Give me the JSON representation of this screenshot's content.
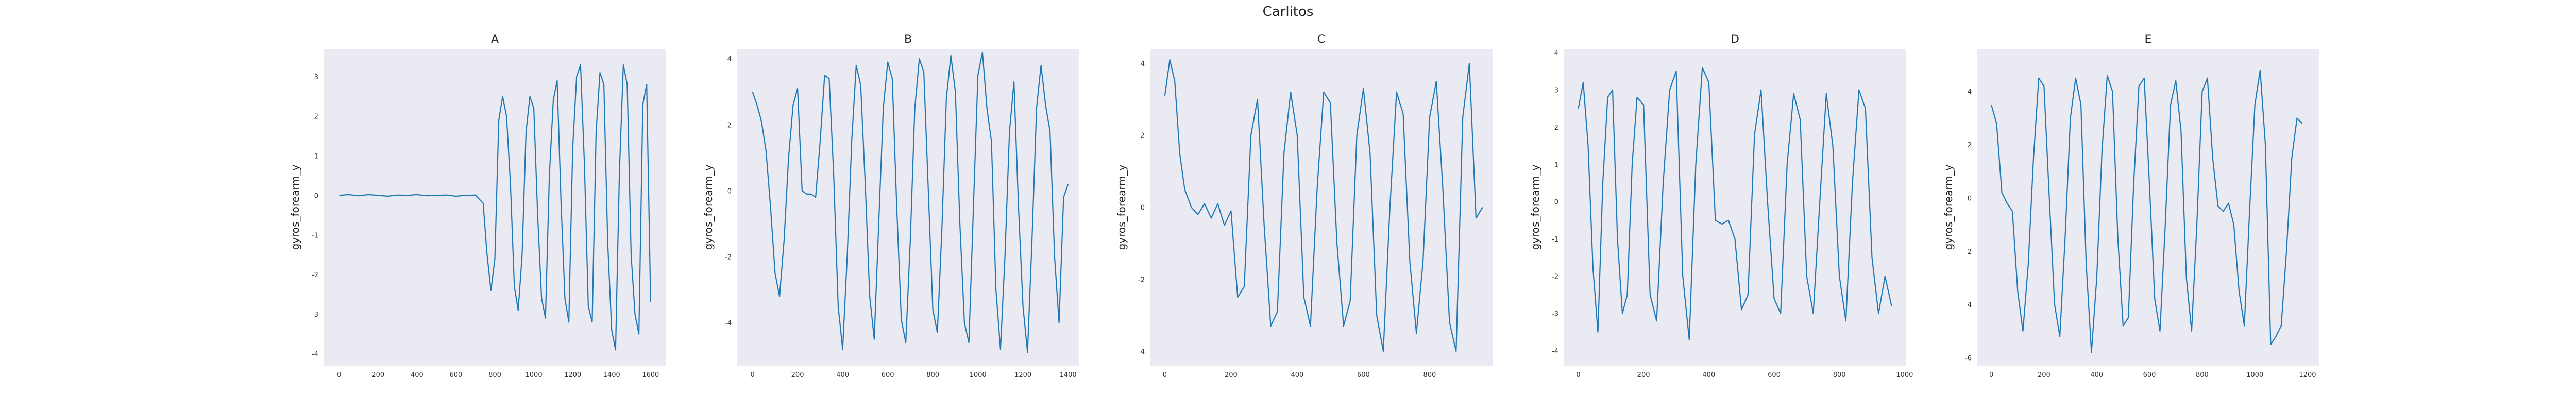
{
  "figure": {
    "title": "Carlitos"
  },
  "style": {
    "facecolor": "#eaeaf2",
    "line_color": "#1f77b4",
    "tick_color": "#333333"
  },
  "chart_data": [
    {
      "type": "line",
      "title": "A",
      "ylabel": "gyros_forearm_y",
      "xlabel": "",
      "grid": false,
      "xlim": [
        -80,
        1680
      ],
      "ylim": [
        -4.3,
        3.7
      ],
      "xticks": [
        0,
        200,
        400,
        600,
        800,
        1000,
        1200,
        1400,
        1600
      ],
      "yticks": [
        -4,
        -3,
        -2,
        -1,
        0,
        1,
        2,
        3
      ],
      "series": [
        {
          "x": [
            0,
            50,
            100,
            150,
            200,
            250,
            300,
            350,
            400,
            450,
            500,
            550,
            600,
            650,
            700,
            740,
            760,
            780,
            800,
            820,
            840,
            860,
            880,
            900,
            920,
            940,
            960,
            980,
            1000,
            1020,
            1040,
            1060,
            1080,
            1100,
            1120,
            1140,
            1160,
            1180,
            1200,
            1220,
            1240,
            1260,
            1280,
            1300,
            1320,
            1340,
            1360,
            1380,
            1400,
            1420,
            1440,
            1460,
            1480,
            1500,
            1520,
            1540,
            1560,
            1580,
            1600
          ],
          "y": [
            0.0,
            0.02,
            -0.01,
            0.02,
            0.0,
            -0.02,
            0.01,
            0.0,
            0.02,
            -0.01,
            0.0,
            0.01,
            -0.02,
            0.0,
            0.01,
            -0.2,
            -1.5,
            -2.4,
            -1.6,
            1.9,
            2.5,
            2.0,
            0.3,
            -2.3,
            -2.9,
            -1.5,
            1.6,
            2.5,
            2.2,
            -0.5,
            -2.6,
            -3.1,
            0.5,
            2.4,
            2.9,
            -0.2,
            -2.6,
            -3.2,
            1.2,
            3.0,
            3.3,
            0.8,
            -2.8,
            -3.2,
            1.6,
            3.1,
            2.8,
            -1.2,
            -3.4,
            -3.9,
            0.6,
            3.3,
            2.8,
            -1.5,
            -3.0,
            -3.5,
            2.3,
            2.8,
            -2.7
          ]
        }
      ]
    },
    {
      "type": "line",
      "title": "B",
      "ylabel": "gyros_forearm_y",
      "xlabel": "",
      "grid": false,
      "xlim": [
        -70,
        1450
      ],
      "ylim": [
        -5.3,
        4.3
      ],
      "xticks": [
        0,
        200,
        400,
        600,
        800,
        1000,
        1200,
        1400
      ],
      "yticks": [
        -4,
        -2,
        0,
        2,
        4
      ],
      "series": [
        {
          "x": [
            0,
            20,
            40,
            60,
            80,
            100,
            120,
            140,
            160,
            180,
            200,
            220,
            240,
            260,
            280,
            300,
            320,
            340,
            360,
            380,
            400,
            420,
            440,
            460,
            480,
            500,
            520,
            540,
            560,
            580,
            600,
            620,
            640,
            660,
            680,
            700,
            720,
            740,
            760,
            780,
            800,
            820,
            840,
            860,
            880,
            900,
            920,
            940,
            960,
            980,
            1000,
            1020,
            1040,
            1060,
            1080,
            1100,
            1120,
            1140,
            1160,
            1180,
            1200,
            1220,
            1240,
            1260,
            1280,
            1300,
            1320,
            1340,
            1360,
            1380,
            1400
          ],
          "y": [
            3.0,
            2.6,
            2.1,
            1.2,
            -0.5,
            -2.5,
            -3.2,
            -1.5,
            1.0,
            2.6,
            3.1,
            0.0,
            -0.1,
            -0.1,
            -0.2,
            1.5,
            3.5,
            3.4,
            0.5,
            -3.5,
            -4.8,
            -2.0,
            1.5,
            3.8,
            3.2,
            0.2,
            -3.2,
            -4.5,
            -1.0,
            2.5,
            3.9,
            3.4,
            -0.5,
            -3.9,
            -4.6,
            -1.5,
            2.5,
            4.0,
            3.6,
            0.0,
            -3.6,
            -4.3,
            -1.2,
            2.8,
            4.1,
            3.0,
            -1.0,
            -4.0,
            -4.6,
            -0.5,
            3.5,
            4.2,
            2.5,
            1.5,
            -3.0,
            -4.8,
            -2.0,
            1.8,
            3.3,
            -0.5,
            -3.5,
            -4.9,
            -1.5,
            2.5,
            3.8,
            2.6,
            1.8,
            -2.0,
            -4.0,
            -0.2,
            0.2
          ]
        }
      ]
    },
    {
      "type": "line",
      "title": "C",
      "ylabel": "gyros_forearm_y",
      "xlabel": "",
      "grid": false,
      "xlim": [
        -45,
        990
      ],
      "ylim": [
        -4.4,
        4.4
      ],
      "xticks": [
        0,
        200,
        400,
        600,
        800
      ],
      "yticks": [
        -4,
        -2,
        0,
        2,
        4
      ],
      "series": [
        {
          "x": [
            0,
            15,
            30,
            45,
            60,
            80,
            100,
            120,
            140,
            160,
            180,
            200,
            220,
            240,
            260,
            280,
            300,
            320,
            340,
            360,
            380,
            400,
            420,
            440,
            460,
            480,
            500,
            520,
            540,
            560,
            580,
            600,
            620,
            640,
            660,
            680,
            700,
            720,
            740,
            760,
            780,
            800,
            820,
            840,
            860,
            880,
            900,
            920,
            940,
            960
          ],
          "y": [
            3.1,
            4.1,
            3.5,
            1.5,
            0.5,
            0.0,
            -0.2,
            0.1,
            -0.3,
            0.1,
            -0.5,
            -0.1,
            -2.5,
            -2.2,
            2.0,
            3.0,
            -0.5,
            -3.3,
            -2.9,
            1.5,
            3.2,
            2.0,
            -2.5,
            -3.3,
            0.5,
            3.2,
            2.9,
            -1.0,
            -3.3,
            -2.6,
            2.0,
            3.3,
            1.5,
            -3.0,
            -4.0,
            0.0,
            3.2,
            2.6,
            -1.5,
            -3.5,
            -1.5,
            2.5,
            3.5,
            0.5,
            -3.2,
            -4.0,
            2.5,
            4.0,
            -0.3,
            0.0
          ]
        }
      ]
    },
    {
      "type": "line",
      "title": "D",
      "ylabel": "gyros_forearm_y",
      "xlabel": "",
      "grid": false,
      "xlim": [
        -45,
        1005
      ],
      "ylim": [
        -4.4,
        4.1
      ],
      "xticks": [
        0,
        200,
        400,
        600,
        800,
        1000
      ],
      "yticks": [
        -4,
        -3,
        -2,
        -1,
        0,
        1,
        2,
        3,
        4
      ],
      "series": [
        {
          "x": [
            0,
            15,
            30,
            45,
            60,
            75,
            90,
            105,
            120,
            135,
            150,
            165,
            180,
            200,
            220,
            240,
            260,
            280,
            300,
            320,
            340,
            360,
            380,
            400,
            420,
            440,
            460,
            480,
            500,
            520,
            540,
            560,
            580,
            600,
            620,
            640,
            660,
            680,
            700,
            720,
            740,
            760,
            780,
            800,
            820,
            840,
            860,
            880,
            900,
            920,
            940,
            960
          ],
          "y": [
            2.5,
            3.2,
            1.5,
            -1.8,
            -3.5,
            0.5,
            2.8,
            3.0,
            -1.0,
            -3.0,
            -2.5,
            1.0,
            2.8,
            2.6,
            -2.5,
            -3.2,
            0.5,
            3.0,
            3.5,
            -2.0,
            -3.7,
            1.0,
            3.6,
            3.2,
            -0.5,
            -0.6,
            -0.5,
            -1.0,
            -2.9,
            -2.5,
            1.8,
            3.0,
            0.0,
            -2.6,
            -3.0,
            1.0,
            2.9,
            2.2,
            -2.0,
            -3.0,
            0.0,
            2.9,
            1.5,
            -2.0,
            -3.2,
            0.5,
            3.0,
            2.5,
            -1.5,
            -3.0,
            -2.0,
            -2.8
          ]
        }
      ]
    },
    {
      "type": "line",
      "title": "E",
      "ylabel": "gyros_forearm_y",
      "xlabel": "",
      "grid": false,
      "xlim": [
        -55,
        1245
      ],
      "ylim": [
        -6.3,
        5.6
      ],
      "xticks": [
        0,
        200,
        400,
        600,
        800,
        1000,
        1200
      ],
      "yticks": [
        -6,
        -4,
        -2,
        0,
        2,
        4
      ],
      "series": [
        {
          "x": [
            0,
            20,
            40,
            60,
            80,
            100,
            120,
            140,
            160,
            180,
            200,
            220,
            240,
            260,
            280,
            300,
            320,
            340,
            360,
            380,
            400,
            420,
            440,
            460,
            480,
            500,
            520,
            540,
            560,
            580,
            600,
            620,
            640,
            660,
            680,
            700,
            720,
            740,
            760,
            780,
            800,
            820,
            840,
            860,
            880,
            900,
            920,
            940,
            960,
            980,
            1000,
            1020,
            1040,
            1060,
            1080,
            1100,
            1120,
            1140,
            1160,
            1180
          ],
          "y": [
            3.5,
            2.8,
            0.2,
            -0.2,
            -0.5,
            -3.5,
            -5.0,
            -2.5,
            1.5,
            4.5,
            4.2,
            0.0,
            -4.0,
            -5.2,
            -1.5,
            3.0,
            4.5,
            3.5,
            -2.5,
            -5.8,
            -3.0,
            1.8,
            4.6,
            4.0,
            -1.5,
            -4.8,
            -4.5,
            0.5,
            4.2,
            4.5,
            0.5,
            -3.8,
            -5.0,
            -1.0,
            3.5,
            4.4,
            2.5,
            -3.0,
            -5.0,
            -1.0,
            4.0,
            4.5,
            1.5,
            -0.3,
            -0.5,
            -0.2,
            -1.0,
            -3.5,
            -4.8,
            -0.5,
            3.5,
            4.8,
            2.0,
            -5.5,
            -5.2,
            -4.8,
            -2.0,
            1.5,
            3.0,
            2.8
          ]
        }
      ]
    }
  ]
}
